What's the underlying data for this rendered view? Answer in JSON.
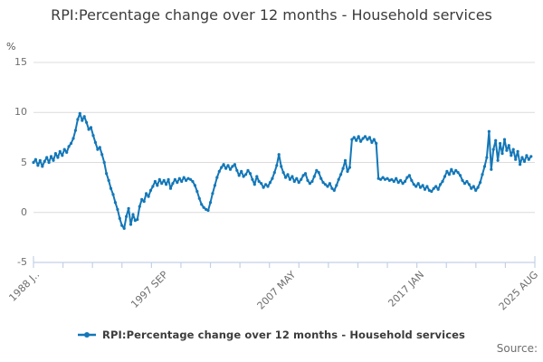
{
  "header": {
    "title": "RPI:Percentage change over 12 months - Household services"
  },
  "y_axis": {
    "unit": "%",
    "ticks": [
      15,
      10,
      5,
      0,
      -5
    ]
  },
  "legend": {
    "label": "RPI:Percentage change over 12 months - Household services"
  },
  "source": {
    "label": "Source:"
  },
  "colors": {
    "line": "#1377b8",
    "grid": "#dcdcdc",
    "axis": "#c4d0e6",
    "title_text": "#3c3c3c",
    "muted_text": "#6e6e6e"
  },
  "chart_data": {
    "type": "line",
    "title": "RPI:Percentage change over 12 months - Household services",
    "ylabel": "%",
    "ylim": [
      -5,
      15
    ],
    "xlim": [
      1988.0,
      2025.583
    ],
    "grid": true,
    "legend_position": "bottom",
    "y_gridlines": [
      15,
      10,
      5,
      0
    ],
    "x_ticks": [
      {
        "t": 1988.0,
        "label": "1988 J.."
      },
      {
        "t": 1997.667,
        "label": "1997 SEP"
      },
      {
        "t": 2007.333,
        "label": "2007 MAY"
      },
      {
        "t": 2017.0,
        "label": "2017 JAN"
      },
      {
        "t": 2025.583,
        "label": "2025 AUG"
      }
    ],
    "series": [
      {
        "name": "RPI:Percentage change over 12 months - Household services",
        "x_start": 1988.0,
        "x_step_years": 0.166667,
        "values": [
          5.0,
          5.3,
          4.7,
          5.2,
          4.6,
          5.1,
          5.5,
          5.0,
          5.6,
          5.2,
          5.9,
          5.5,
          6.1,
          5.7,
          6.3,
          6.0,
          6.6,
          6.9,
          7.4,
          8.2,
          9.3,
          9.9,
          9.2,
          9.6,
          9.0,
          8.3,
          8.5,
          7.7,
          7.0,
          6.3,
          6.5,
          5.8,
          5.0,
          3.9,
          3.2,
          2.4,
          1.8,
          1.0,
          0.3,
          -0.6,
          -1.3,
          -1.6,
          -0.4,
          0.4,
          -1.2,
          -0.2,
          -0.8,
          -0.7,
          0.6,
          1.3,
          1.1,
          1.9,
          1.6,
          2.2,
          2.6,
          3.1,
          2.7,
          3.3,
          2.9,
          3.2,
          2.8,
          3.3,
          2.4,
          2.9,
          3.3,
          3.0,
          3.4,
          3.1,
          3.5,
          3.2,
          3.4,
          3.3,
          3.1,
          2.7,
          2.1,
          1.4,
          0.8,
          0.5,
          0.3,
          0.2,
          1.0,
          1.9,
          2.7,
          3.5,
          4.1,
          4.5,
          4.8,
          4.4,
          4.7,
          4.3,
          4.6,
          4.8,
          4.2,
          3.7,
          4.1,
          3.6,
          3.8,
          4.2,
          3.9,
          3.3,
          2.8,
          3.6,
          3.1,
          2.9,
          2.5,
          2.8,
          2.6,
          3.0,
          3.4,
          4.0,
          4.7,
          5.8,
          4.6,
          4.0,
          3.5,
          3.8,
          3.3,
          3.6,
          3.1,
          3.4,
          3.0,
          3.3,
          3.7,
          3.9,
          3.2,
          2.9,
          3.1,
          3.6,
          4.2,
          4.0,
          3.4,
          3.0,
          2.8,
          2.6,
          2.9,
          2.4,
          2.2,
          2.7,
          3.3,
          3.8,
          4.4,
          5.2,
          4.1,
          4.5,
          7.3,
          7.5,
          7.2,
          7.6,
          7.1,
          7.4,
          7.6,
          7.3,
          7.5,
          7.0,
          7.3,
          6.9,
          3.4,
          3.3,
          3.5,
          3.3,
          3.4,
          3.2,
          3.3,
          3.1,
          3.4,
          3.0,
          3.2,
          2.9,
          3.1,
          3.5,
          3.7,
          3.2,
          2.8,
          2.6,
          2.9,
          2.5,
          2.7,
          2.3,
          2.6,
          2.2,
          2.1,
          2.4,
          2.6,
          2.3,
          2.8,
          3.1,
          3.6,
          4.1,
          3.8,
          4.3,
          3.9,
          4.2,
          4.0,
          3.7,
          3.2,
          2.9,
          3.1,
          2.8,
          2.4,
          2.6,
          2.2,
          2.5,
          3.0,
          3.8,
          4.6,
          5.5,
          8.1,
          4.3,
          6.3,
          7.2,
          5.2,
          6.9,
          5.9,
          7.3,
          6.2,
          6.7,
          5.7,
          6.3,
          5.3,
          6.1,
          4.8,
          5.5,
          5.1,
          5.7,
          5.3,
          5.6
        ]
      }
    ]
  }
}
